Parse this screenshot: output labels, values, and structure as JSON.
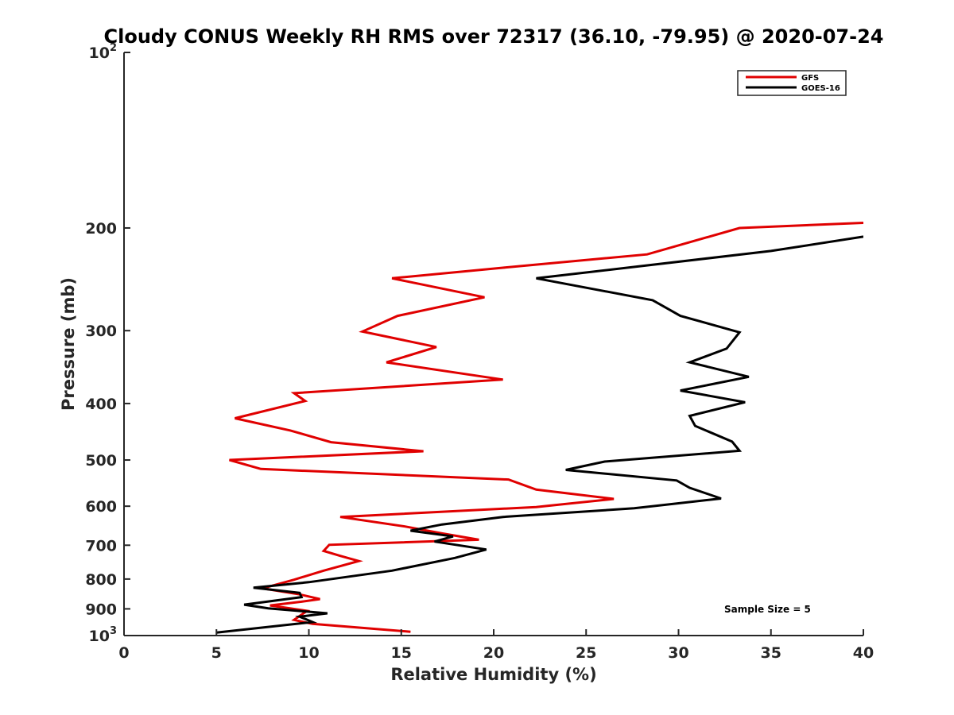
{
  "chart_data": {
    "type": "line",
    "title": "Cloudy CONUS Weekly RH RMS over 72317 (36.10, -79.95) @ 2020-07-24",
    "xlabel": "Relative Humidity (%)",
    "ylabel": "Pressure (mb)",
    "xlim": [
      0,
      40
    ],
    "ylim": [
      1000,
      100
    ],
    "yscale": "log",
    "y_reversed": true,
    "grid": false,
    "legend_position": "top-right",
    "x_ticks": [
      "0",
      "5",
      "10",
      "15",
      "20",
      "25",
      "30",
      "35",
      "40"
    ],
    "y_ticks": [
      {
        "value": 100,
        "base": "10",
        "exp": "2"
      },
      {
        "value": 200,
        "label": "200"
      },
      {
        "value": 300,
        "label": "300"
      },
      {
        "value": 400,
        "label": "400"
      },
      {
        "value": 500,
        "label": "500"
      },
      {
        "value": 600,
        "label": "600"
      },
      {
        "value": 700,
        "label": "700"
      },
      {
        "value": 800,
        "label": "800"
      },
      {
        "value": 900,
        "label": "900"
      },
      {
        "value": 1000,
        "base": "10",
        "exp": "3"
      }
    ],
    "annotation": "Sample Size = 5",
    "series": [
      {
        "name": "GFS",
        "color": "#e00000",
        "points": [
          [
            40.0,
            196
          ],
          [
            33.3,
            200
          ],
          [
            28.3,
            222
          ],
          [
            20.5,
            234
          ],
          [
            14.5,
            244
          ],
          [
            19.5,
            263
          ],
          [
            14.8,
            283
          ],
          [
            12.9,
            301
          ],
          [
            16.9,
            320
          ],
          [
            14.2,
            340
          ],
          [
            20.5,
            364
          ],
          [
            9.2,
            384
          ],
          [
            9.8,
            396
          ],
          [
            6.0,
            424
          ],
          [
            9.0,
            445
          ],
          [
            11.2,
            466
          ],
          [
            16.2,
            483
          ],
          [
            5.7,
            500
          ],
          [
            7.4,
            518
          ],
          [
            20.8,
            540
          ],
          [
            22.3,
            562
          ],
          [
            26.5,
            583
          ],
          [
            22.3,
            602
          ],
          [
            11.7,
            626
          ],
          [
            15.2,
            650
          ],
          [
            17.2,
            668
          ],
          [
            19.2,
            685
          ],
          [
            11.1,
            699
          ],
          [
            10.8,
            716
          ],
          [
            11.7,
            730
          ],
          [
            12.7,
            745
          ],
          [
            10.8,
            774
          ],
          [
            9.2,
            802
          ],
          [
            7.5,
            830
          ],
          [
            9.5,
            850
          ],
          [
            10.6,
            866
          ],
          [
            9.6,
            875
          ],
          [
            7.9,
            888
          ],
          [
            9.9,
            907
          ],
          [
            9.2,
            940
          ],
          [
            10.2,
            955
          ],
          [
            15.5,
            985
          ]
        ]
      },
      {
        "name": "GOES-16",
        "color": "#000000",
        "points": [
          [
            40.0,
            207
          ],
          [
            35.0,
            219
          ],
          [
            22.3,
            244
          ],
          [
            28.6,
            266
          ],
          [
            30.1,
            283
          ],
          [
            33.3,
            302
          ],
          [
            32.6,
            322
          ],
          [
            30.6,
            340
          ],
          [
            33.8,
            360
          ],
          [
            30.1,
            380
          ],
          [
            33.6,
            398
          ],
          [
            30.6,
            420
          ],
          [
            30.9,
            437
          ],
          [
            32.9,
            465
          ],
          [
            33.3,
            482
          ],
          [
            26.0,
            503
          ],
          [
            23.9,
            520
          ],
          [
            29.9,
            542
          ],
          [
            30.6,
            558
          ],
          [
            32.3,
            582
          ],
          [
            27.6,
            605
          ],
          [
            20.5,
            626
          ],
          [
            17.2,
            645
          ],
          [
            15.5,
            661
          ],
          [
            17.8,
            676
          ],
          [
            16.8,
            690
          ],
          [
            19.6,
            712
          ],
          [
            17.9,
            736
          ],
          [
            14.5,
            774
          ],
          [
            10.0,
            810
          ],
          [
            7.0,
            828
          ],
          [
            9.5,
            845
          ],
          [
            9.6,
            859
          ],
          [
            6.5,
            885
          ],
          [
            7.8,
            898
          ],
          [
            11.0,
            916
          ],
          [
            9.5,
            928
          ],
          [
            10.2,
            948
          ],
          [
            5.0,
            988
          ]
        ]
      }
    ]
  }
}
